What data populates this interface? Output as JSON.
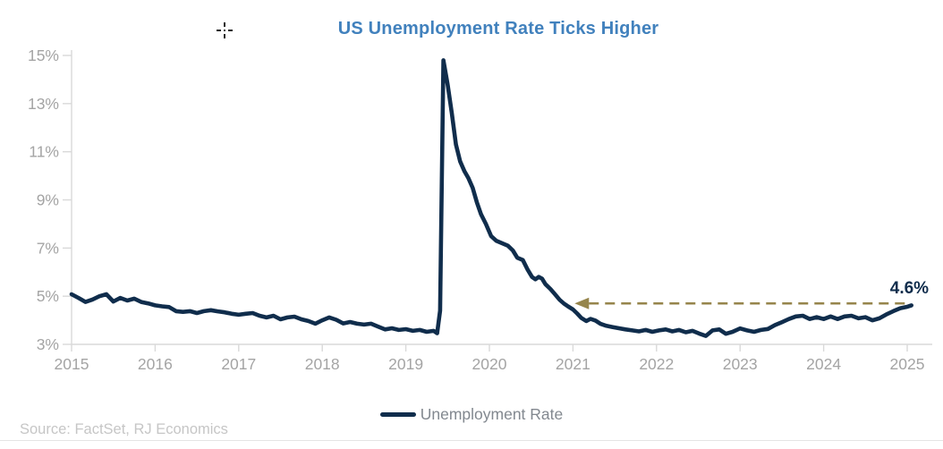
{
  "title": {
    "text": "US Unemployment Rate Ticks Higher"
  },
  "legend": {
    "label": "Unemployment Rate"
  },
  "source": {
    "text": "Source: FactSet, RJ Economics"
  },
  "colors": {
    "line": "#102d4c",
    "title": "#4181bd",
    "axis_text": "#a4a4a4",
    "axis_line": "#d9d9d9",
    "arrow": "#96854c",
    "annotation_text": "#102d4c",
    "legend_text": "#82888f",
    "source_text": "#c6c6c6",
    "cursor": "#000000"
  },
  "chart_data": {
    "type": "line",
    "title": "US Unemployment Rate Ticks Higher",
    "xlabel": "",
    "ylabel": "",
    "grid": false,
    "legend_position": "bottom-center",
    "x_axis": {
      "min": 2015,
      "max": 2025,
      "ticks": [
        {
          "value": 2015,
          "label": "2015"
        },
        {
          "value": 2016,
          "label": "2016"
        },
        {
          "value": 2017,
          "label": "2017"
        },
        {
          "value": 2018,
          "label": "2018"
        },
        {
          "value": 2019,
          "label": "2019"
        },
        {
          "value": 2020,
          "label": "2020"
        },
        {
          "value": 2021,
          "label": "2021"
        },
        {
          "value": 2022,
          "label": "2022"
        },
        {
          "value": 2023,
          "label": "2023"
        },
        {
          "value": 2024,
          "label": "2024"
        },
        {
          "value": 2025,
          "label": "2025"
        }
      ]
    },
    "y_axis": {
      "min": 3,
      "max": 15,
      "unit": "%",
      "ticks": [
        {
          "value": 3,
          "label": "3%"
        },
        {
          "value": 5,
          "label": "5%"
        },
        {
          "value": 7,
          "label": "7%"
        },
        {
          "value": 9,
          "label": "9%"
        },
        {
          "value": 11,
          "label": "11%"
        },
        {
          "value": 13,
          "label": "13%"
        },
        {
          "value": 15,
          "label": "15%"
        }
      ]
    },
    "annotation": {
      "label": "4.6%",
      "value": 4.7,
      "arrow_start_year": 2021.02,
      "arrow_end_year": 2024.99,
      "style": "dashed-arrow-pointing-left"
    },
    "series": [
      {
        "name": "Unemployment Rate",
        "points": [
          [
            2015.0,
            5.08
          ],
          [
            2015.083,
            4.93
          ],
          [
            2015.167,
            4.76
          ],
          [
            2015.25,
            4.86
          ],
          [
            2015.333,
            5.0
          ],
          [
            2015.417,
            5.08
          ],
          [
            2015.5,
            4.78
          ],
          [
            2015.583,
            4.93
          ],
          [
            2015.667,
            4.82
          ],
          [
            2015.75,
            4.9
          ],
          [
            2015.833,
            4.76
          ],
          [
            2015.917,
            4.7
          ],
          [
            2016.0,
            4.62
          ],
          [
            2016.083,
            4.58
          ],
          [
            2016.167,
            4.55
          ],
          [
            2016.25,
            4.38
          ],
          [
            2016.333,
            4.35
          ],
          [
            2016.417,
            4.38
          ],
          [
            2016.5,
            4.3
          ],
          [
            2016.583,
            4.38
          ],
          [
            2016.667,
            4.42
          ],
          [
            2016.75,
            4.37
          ],
          [
            2016.833,
            4.33
          ],
          [
            2016.917,
            4.27
          ],
          [
            2017.0,
            4.23
          ],
          [
            2017.083,
            4.27
          ],
          [
            2017.167,
            4.3
          ],
          [
            2017.25,
            4.19
          ],
          [
            2017.333,
            4.12
          ],
          [
            2017.417,
            4.19
          ],
          [
            2017.5,
            4.04
          ],
          [
            2017.583,
            4.12
          ],
          [
            2017.667,
            4.15
          ],
          [
            2017.75,
            4.04
          ],
          [
            2017.833,
            3.97
          ],
          [
            2017.917,
            3.86
          ],
          [
            2018.0,
            4.0
          ],
          [
            2018.083,
            4.12
          ],
          [
            2018.167,
            4.02
          ],
          [
            2018.25,
            3.87
          ],
          [
            2018.333,
            3.93
          ],
          [
            2018.417,
            3.86
          ],
          [
            2018.5,
            3.82
          ],
          [
            2018.583,
            3.86
          ],
          [
            2018.667,
            3.74
          ],
          [
            2018.75,
            3.62
          ],
          [
            2018.833,
            3.67
          ],
          [
            2018.917,
            3.6
          ],
          [
            2019.0,
            3.63
          ],
          [
            2019.083,
            3.56
          ],
          [
            2019.167,
            3.6
          ],
          [
            2019.25,
            3.52
          ],
          [
            2019.333,
            3.56
          ],
          [
            2019.375,
            3.46
          ],
          [
            2019.41,
            4.4
          ],
          [
            2019.45,
            14.8
          ],
          [
            2019.5,
            13.8
          ],
          [
            2019.55,
            12.6
          ],
          [
            2019.6,
            11.3
          ],
          [
            2019.65,
            10.6
          ],
          [
            2019.7,
            10.2
          ],
          [
            2019.75,
            9.9
          ],
          [
            2019.8,
            9.5
          ],
          [
            2019.85,
            8.9
          ],
          [
            2019.9,
            8.4
          ],
          [
            2019.958,
            8.0
          ],
          [
            2020.02,
            7.5
          ],
          [
            2020.083,
            7.3
          ],
          [
            2020.15,
            7.2
          ],
          [
            2020.22,
            7.1
          ],
          [
            2020.28,
            6.9
          ],
          [
            2020.333,
            6.6
          ],
          [
            2020.4,
            6.5
          ],
          [
            2020.458,
            6.1
          ],
          [
            2020.51,
            5.8
          ],
          [
            2020.55,
            5.7
          ],
          [
            2020.59,
            5.8
          ],
          [
            2020.63,
            5.73
          ],
          [
            2020.67,
            5.5
          ],
          [
            2020.73,
            5.3
          ],
          [
            2020.78,
            5.1
          ],
          [
            2020.84,
            4.85
          ],
          [
            2020.89,
            4.7
          ],
          [
            2020.94,
            4.58
          ],
          [
            2021.0,
            4.45
          ],
          [
            2021.05,
            4.28
          ],
          [
            2021.1,
            4.1
          ],
          [
            2021.16,
            3.97
          ],
          [
            2021.21,
            4.06
          ],
          [
            2021.27,
            3.99
          ],
          [
            2021.33,
            3.85
          ],
          [
            2021.4,
            3.77
          ],
          [
            2021.47,
            3.72
          ],
          [
            2021.55,
            3.67
          ],
          [
            2021.63,
            3.62
          ],
          [
            2021.71,
            3.58
          ],
          [
            2021.79,
            3.54
          ],
          [
            2021.87,
            3.6
          ],
          [
            2021.95,
            3.52
          ],
          [
            2022.03,
            3.58
          ],
          [
            2022.11,
            3.62
          ],
          [
            2022.19,
            3.54
          ],
          [
            2022.27,
            3.6
          ],
          [
            2022.35,
            3.5
          ],
          [
            2022.43,
            3.56
          ],
          [
            2022.51,
            3.45
          ],
          [
            2022.59,
            3.35
          ],
          [
            2022.67,
            3.58
          ],
          [
            2022.75,
            3.62
          ],
          [
            2022.83,
            3.44
          ],
          [
            2022.91,
            3.52
          ],
          [
            2023.0,
            3.66
          ],
          [
            2023.083,
            3.58
          ],
          [
            2023.167,
            3.52
          ],
          [
            2023.25,
            3.6
          ],
          [
            2023.333,
            3.64
          ],
          [
            2023.417,
            3.8
          ],
          [
            2023.5,
            3.92
          ],
          [
            2023.583,
            4.05
          ],
          [
            2023.667,
            4.16
          ],
          [
            2023.75,
            4.19
          ],
          [
            2023.833,
            4.05
          ],
          [
            2023.917,
            4.13
          ],
          [
            2024.0,
            4.05
          ],
          [
            2024.083,
            4.16
          ],
          [
            2024.167,
            4.05
          ],
          [
            2024.25,
            4.16
          ],
          [
            2024.333,
            4.19
          ],
          [
            2024.417,
            4.08
          ],
          [
            2024.5,
            4.13
          ],
          [
            2024.583,
            4.0
          ],
          [
            2024.667,
            4.08
          ],
          [
            2024.75,
            4.24
          ],
          [
            2024.833,
            4.38
          ],
          [
            2024.917,
            4.5
          ],
          [
            2025.0,
            4.56
          ],
          [
            2025.05,
            4.62
          ]
        ]
      }
    ]
  }
}
